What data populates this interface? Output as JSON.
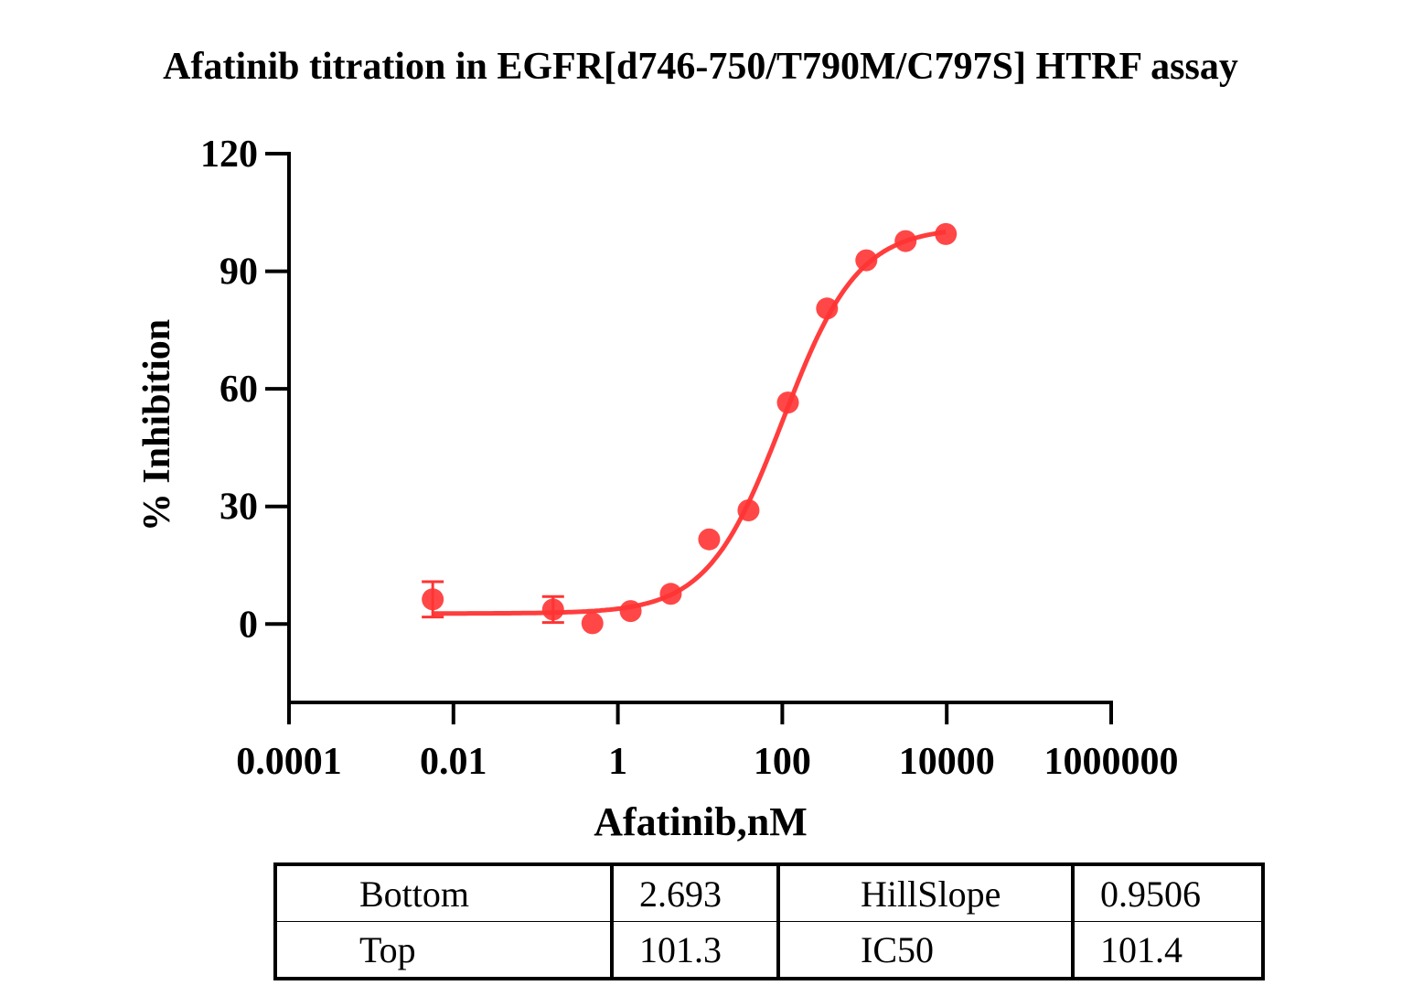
{
  "chart_data": {
    "type": "scatter",
    "title": "Afatinib titration in EGFR[d746-750/T790M/C797S] HTRF assay",
    "xlabel": "Afatinib,nM",
    "ylabel": "% Inhibition",
    "xscale": "log",
    "xlim": [
      0.0001,
      1000000
    ],
    "ylim": [
      -20,
      120
    ],
    "xticks": [
      "0.0001",
      "0.01",
      "1",
      "100",
      "10000",
      "1000000"
    ],
    "xtick_values": [
      0.0001,
      0.01,
      1,
      100,
      10000,
      1000000
    ],
    "yticks": [
      "120",
      "90",
      "60",
      "30",
      "0"
    ],
    "ytick_values": [
      120,
      90,
      60,
      30,
      0
    ],
    "grid": false,
    "color": "#ff3333",
    "series": [
      {
        "name": "Afatinib",
        "x": [
          0.0056,
          0.163,
          0.49,
          1.43,
          4.4,
          12.9,
          38.8,
          117,
          350,
          1052,
          3160,
          9750
        ],
        "y": [
          6.3,
          3.7,
          0.2,
          3.3,
          7.7,
          21.6,
          29.0,
          56.5,
          80.5,
          92.8,
          97.7,
          99.5
        ],
        "error": [
          4.5,
          3.3,
          0,
          0,
          0,
          0,
          0,
          0,
          0,
          0,
          0,
          0
        ]
      }
    ],
    "fit": {
      "model": "4PL",
      "bottom": 2.693,
      "top": 101.3,
      "hillslope": 0.9506,
      "ic50": 101.4
    },
    "table": [
      [
        {
          "label": "Bottom",
          "value": "2.693"
        },
        {
          "label": "HillSlope",
          "value": "0.9506"
        }
      ],
      [
        {
          "label": "Top",
          "value": "101.3"
        },
        {
          "label": "IC50",
          "value": "101.4"
        }
      ]
    ]
  }
}
